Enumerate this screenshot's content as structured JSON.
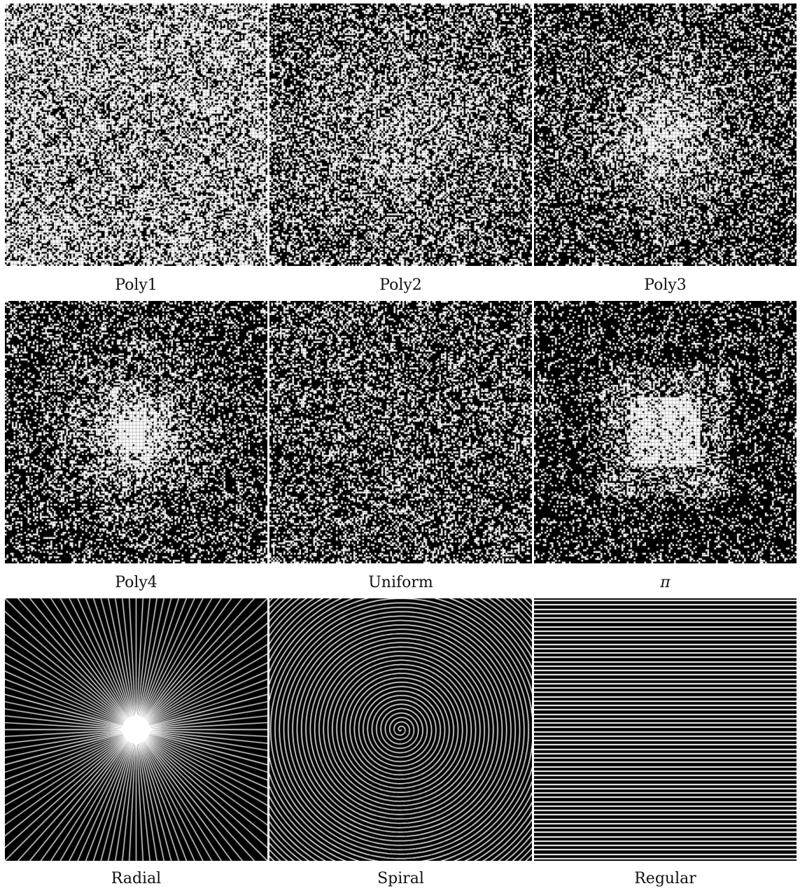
{
  "figure": {
    "panels": [
      {
        "id": "poly1",
        "caption": "Poly1",
        "pattern": "poly",
        "degree": 1
      },
      {
        "id": "poly2",
        "caption": "Poly2",
        "pattern": "poly",
        "degree": 2
      },
      {
        "id": "poly3",
        "caption": "Poly3",
        "pattern": "poly",
        "degree": 3
      },
      {
        "id": "poly4",
        "caption": "Poly4",
        "pattern": "poly",
        "degree": 4
      },
      {
        "id": "uniform",
        "caption": "Uniform",
        "pattern": "uniform"
      },
      {
        "id": "pi",
        "caption": "π",
        "pattern": "pi"
      },
      {
        "id": "radial",
        "caption": "Radial",
        "pattern": "radial"
      },
      {
        "id": "spiral",
        "caption": "Spiral",
        "pattern": "spiral"
      },
      {
        "id": "regular",
        "caption": "Regular",
        "pattern": "regular"
      }
    ],
    "colors": {
      "background": "#000000",
      "foreground": "#ffffff"
    }
  }
}
